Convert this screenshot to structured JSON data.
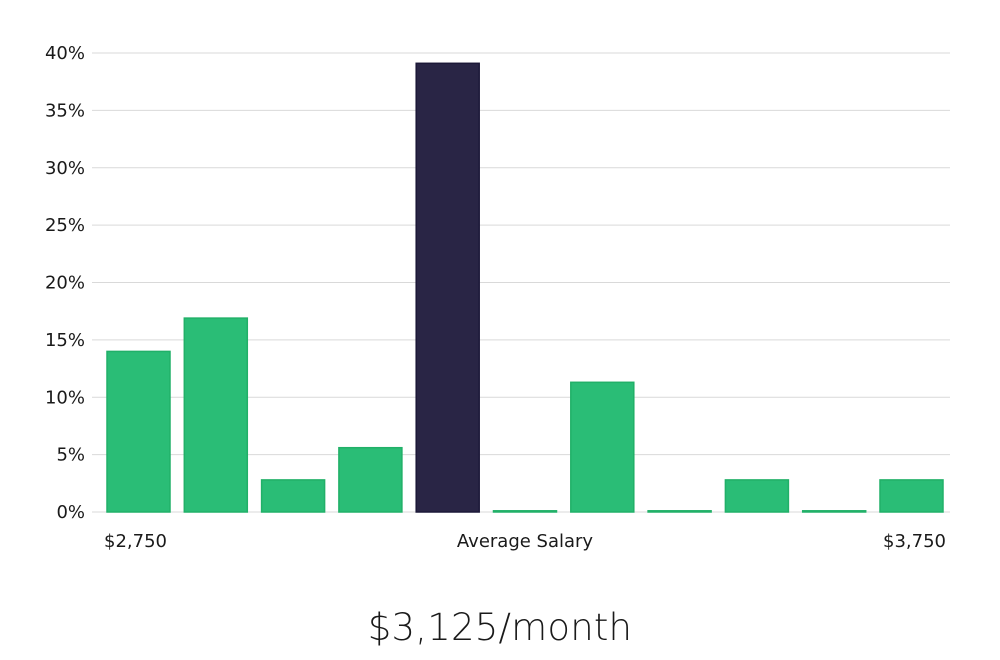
{
  "chart_data": {
    "type": "bar",
    "values": [
      14.0,
      16.9,
      2.8,
      5.6,
      39.1,
      0.0,
      11.3,
      0.0,
      2.8,
      0.0,
      2.8
    ],
    "highlight_index": 4,
    "y_ticks": [
      "0%",
      "5%",
      "10%",
      "15%",
      "20%",
      "25%",
      "30%",
      "35%",
      "40%"
    ],
    "ylim": [
      0,
      40
    ],
    "x_labels": {
      "start": "$2,750",
      "middle": "Average Salary",
      "end": "$3,750"
    },
    "grid": true,
    "colors": {
      "bar": "#2abd76",
      "highlight": "#292545",
      "grid": "#d9d9d9"
    }
  },
  "headline": "$3,125/month"
}
